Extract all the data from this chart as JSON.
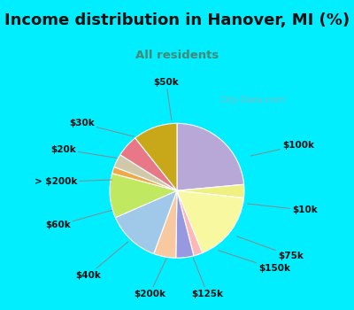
{
  "title": "Income distribution in Hanover, MI (%)",
  "subtitle": "All residents",
  "watermark": "© City-Data.com",
  "segments": [
    {
      "label": "$100k",
      "value": 22,
      "color": "#b8a8d8"
    },
    {
      "label": "$10k",
      "value": 3,
      "color": "#f0f080"
    },
    {
      "label": "$75k",
      "value": 16,
      "color": "#f8f8a0"
    },
    {
      "label": "$150k",
      "value": 2,
      "color": "#ffb8b8"
    },
    {
      "label": "$125k",
      "value": 4,
      "color": "#9898e0"
    },
    {
      "label": "$200k",
      "value": 5,
      "color": "#f8c8a0"
    },
    {
      "label": "$40k",
      "value": 12,
      "color": "#a0c8e8"
    },
    {
      "label": "$60k",
      "value": 10,
      "color": "#c0e860"
    },
    {
      "label": "> $200k",
      "value": 1.5,
      "color": "#f0a848"
    },
    {
      "label": "$20k",
      "value": 3,
      "color": "#d0c8a8"
    },
    {
      "label": "$30k",
      "value": 5,
      "color": "#e87888"
    },
    {
      "label": "$50k",
      "value": 10,
      "color": "#c8a818"
    }
  ],
  "bg_cyan": "#00eeff",
  "bg_chart": "#d8edd8",
  "title_fontsize": 13,
  "subtitle_color": "#448877",
  "label_fontsize": 7.5
}
